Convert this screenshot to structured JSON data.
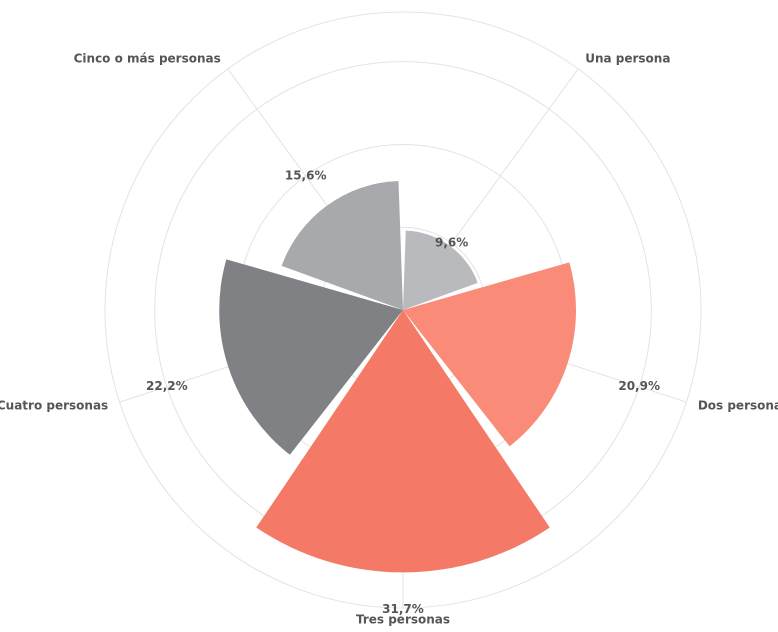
{
  "chart_data": {
    "type": "polar-area",
    "categories": [
      "Una persona",
      "Dos personas",
      "Tres personas",
      "Cuatro personas",
      "Cinco o más personas"
    ],
    "values": [
      9.6,
      20.9,
      31.7,
      22.2,
      15.6
    ],
    "value_labels": [
      "9,6%",
      "20,9%",
      "31,7%",
      "22,2%",
      "15,6%"
    ],
    "colors": [
      "#b9babe",
      "#f98b78",
      "#f47966",
      "#808184",
      "#a8a9ad"
    ],
    "ylim": [
      0,
      36
    ],
    "yticks": [
      10,
      20,
      30,
      36
    ],
    "grid": true
  }
}
